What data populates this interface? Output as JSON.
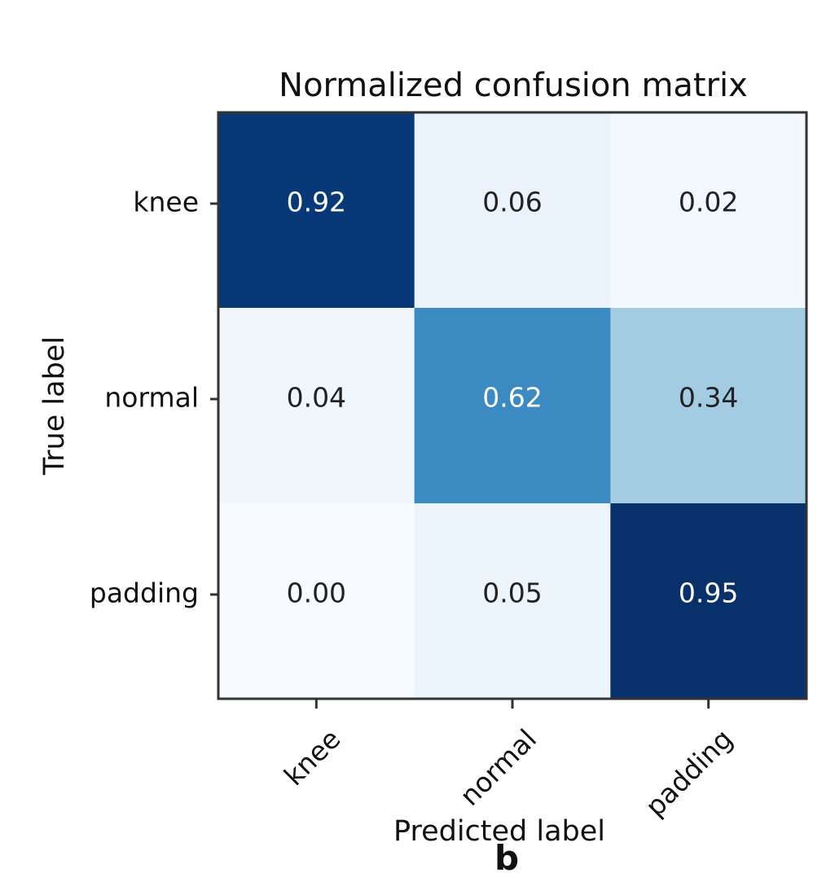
{
  "chart_data": {
    "type": "heatmap",
    "title": "Normalized confusion matrix",
    "xlabel": "Predicted label",
    "ylabel": "True label",
    "x_categories": [
      "knee",
      "normal",
      "padding"
    ],
    "y_categories": [
      "knee",
      "normal",
      "padding"
    ],
    "values": [
      [
        0.92,
        0.06,
        0.02
      ],
      [
        0.04,
        0.62,
        0.34
      ],
      [
        0.0,
        0.05,
        0.95
      ]
    ],
    "value_labels": [
      [
        "0.92",
        "0.06",
        "0.02"
      ],
      [
        "0.04",
        "0.62",
        "0.34"
      ],
      [
        "0.00",
        "0.05",
        "0.95"
      ]
    ],
    "colormap": "Blues",
    "value_range": [
      0,
      0.95
    ],
    "x_tick_rotation_deg": -45,
    "grid": false,
    "legend": "none"
  },
  "panel_label": "b",
  "colors": {
    "text_light": "#ffffff",
    "text_dark": "#222222",
    "frame": "#333333"
  }
}
